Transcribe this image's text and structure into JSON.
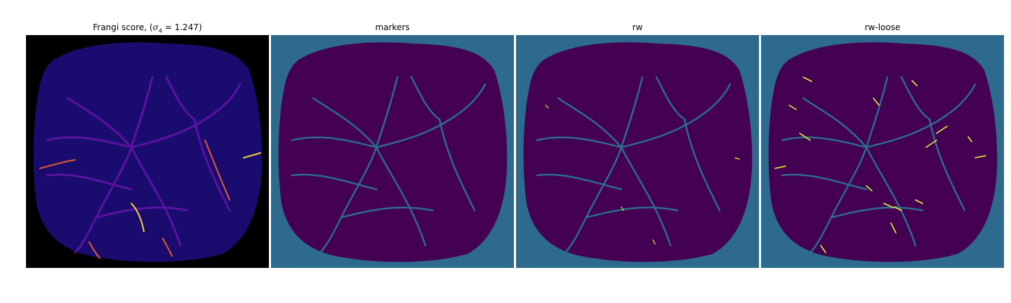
{
  "figure": {
    "panels": [
      {
        "id": "frangi",
        "title_prefix": "Frangi score, (",
        "title_symbol": "σ",
        "title_subscript": "4",
        "title_suffix": " = 1.247)"
      },
      {
        "id": "markers",
        "title": "markers"
      },
      {
        "id": "rw",
        "title": "rw"
      },
      {
        "id": "rw-loose",
        "title": "rw-loose"
      }
    ]
  },
  "colors": {
    "frangi_background": "#000000",
    "frangi_tissue": "#1a0c6e",
    "frangi_vessel": "#6a0ca8",
    "frangi_bright": "#f7d03c",
    "frangi_mid": "#e45a31",
    "viridis_background": "#2e6a8c",
    "viridis_tissue": "#440154",
    "viridis_highlight": "#e3f536"
  }
}
